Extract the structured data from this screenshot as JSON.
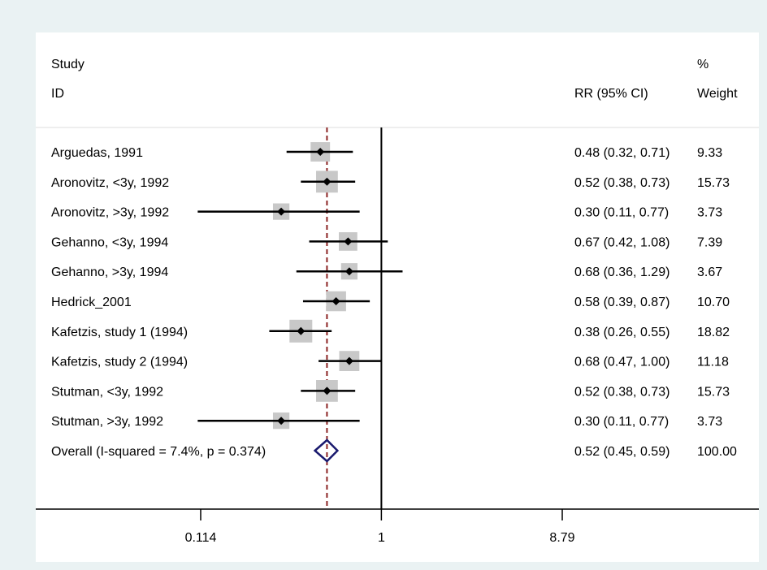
{
  "chart_data": {
    "type": "forest",
    "header": {
      "study_line1": "Study",
      "study_line2": "ID",
      "ci_header": "RR (95% CI)",
      "weight_line1": "%",
      "weight_line2": "Weight"
    },
    "studies": [
      {
        "label": "Arguedas, 1991",
        "rr": 0.48,
        "lo": 0.32,
        "hi": 0.71,
        "ci_text": "0.48 (0.32, 0.71)",
        "weight": "9.33"
      },
      {
        "label": "Aronovitz, <3y, 1992",
        "rr": 0.52,
        "lo": 0.38,
        "hi": 0.73,
        "ci_text": "0.52 (0.38, 0.73)",
        "weight": "15.73"
      },
      {
        "label": "Aronovitz, >3y, 1992",
        "rr": 0.3,
        "lo": 0.11,
        "hi": 0.77,
        "ci_text": "0.30 (0.11, 0.77)",
        "weight": "3.73"
      },
      {
        "label": "Gehanno, <3y, 1994",
        "rr": 0.67,
        "lo": 0.42,
        "hi": 1.08,
        "ci_text": "0.67 (0.42, 1.08)",
        "weight": "7.39"
      },
      {
        "label": "Gehanno, >3y, 1994",
        "rr": 0.68,
        "lo": 0.36,
        "hi": 1.29,
        "ci_text": "0.68 (0.36, 1.29)",
        "weight": "3.67"
      },
      {
        "label": "Hedrick_2001",
        "rr": 0.58,
        "lo": 0.39,
        "hi": 0.87,
        "ci_text": "0.58 (0.39, 0.87)",
        "weight": "10.70"
      },
      {
        "label": "Kafetzis, study 1 (1994)",
        "rr": 0.38,
        "lo": 0.26,
        "hi": 0.55,
        "ci_text": "0.38 (0.26, 0.55)",
        "weight": "18.82"
      },
      {
        "label": "Kafetzis, study 2 (1994)",
        "rr": 0.68,
        "lo": 0.47,
        "hi": 1.0,
        "ci_text": "0.68 (0.47, 1.00)",
        "weight": "11.18"
      },
      {
        "label": "Stutman, <3y, 1992",
        "rr": 0.52,
        "lo": 0.38,
        "hi": 0.73,
        "ci_text": "0.52 (0.38, 0.73)",
        "weight": "15.73"
      },
      {
        "label": "Stutman, >3y, 1992",
        "rr": 0.3,
        "lo": 0.11,
        "hi": 0.77,
        "ci_text": "0.30 (0.11, 0.77)",
        "weight": "3.73"
      }
    ],
    "overall": {
      "label": "Overall  (I-squared = 7.4%, p = 0.374)",
      "rr": 0.52,
      "lo": 0.45,
      "hi": 0.59,
      "ci_text": "0.52 (0.45, 0.59)",
      "weight": "100.00"
    },
    "x_axis": {
      "scale": "log",
      "range": [
        0.114,
        8.79
      ],
      "ticks": [
        0.114,
        1,
        8.79
      ],
      "tick_labels": [
        "0.114",
        "1",
        "8.79"
      ],
      "null_line": 1
    },
    "colors": {
      "background": "#eaf2f3",
      "panel": "#ffffff",
      "weight_box": "#c8c8c8",
      "overall_diamond": "#1a1a6e",
      "pooled_line": "#8b2323"
    }
  }
}
